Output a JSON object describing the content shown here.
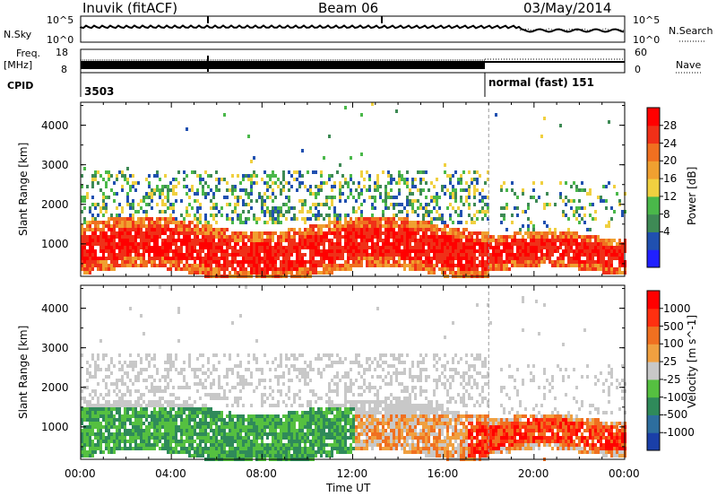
{
  "header": {
    "title": "Inuvik (fitACF)",
    "beam": "Beam 06",
    "date": "03/May/2014"
  },
  "top_panels": {
    "nsky_label": "N.Sky",
    "nsearch_label": "N.Search",
    "noise_ticks_left": [
      "10^5",
      "10^0"
    ],
    "noise_ticks_right": [
      "10^5",
      "10^0"
    ],
    "freq_label_1": "Freq.",
    "freq_label_2": "[MHz]",
    "freq_ticks": [
      "18",
      "8"
    ],
    "nave_label": "Nave",
    "nave_ticks": [
      "60",
      "0"
    ],
    "cpid_label": "CPID",
    "cpid_value": "3503",
    "mode_text": "normal (fast) 151"
  },
  "chart_data": [
    {
      "type": "heatmap",
      "quantity": "Power",
      "ylabel": "Slant Range [km]",
      "yticks": [
        "4000",
        "3000",
        "2000",
        "1000"
      ],
      "ylim": [
        180,
        4580
      ],
      "xlim": [
        0,
        24
      ],
      "colorbar": {
        "label": "Power [dB]",
        "ticks": [
          "28",
          "24",
          "20",
          "16",
          "12",
          "8",
          "4"
        ],
        "colors": [
          "#2020ff",
          "#2050b0",
          "#3e8a55",
          "#4ab84a",
          "#f0d040",
          "#f0a030",
          "#f07020",
          "#f03018",
          "#ff0000"
        ]
      },
      "vertical_marker_ut": 18.0
    },
    {
      "type": "heatmap",
      "quantity": "Velocity",
      "ylabel": "Slant Range [km]",
      "yticks": [
        "4000",
        "3000",
        "2000",
        "1000"
      ],
      "ylim": [
        180,
        4580
      ],
      "xlim": [
        0,
        24
      ],
      "xticks": [
        "00:00",
        "04:00",
        "08:00",
        "12:00",
        "16:00",
        "20:00",
        "00:00"
      ],
      "xlabel": "Time UT",
      "colorbar": {
        "label": "Velocity [m s^-1]",
        "ticks": [
          "1000",
          "500",
          "100",
          "25",
          "-25",
          "-100",
          "-500",
          "-1000"
        ],
        "colors": [
          "#1a3fa8",
          "#2d6e9e",
          "#2f8a5a",
          "#55c040",
          "#c8c8c8",
          "#f0a040",
          "#f07020",
          "#ff3010",
          "#ff0000"
        ]
      },
      "vertical_marker_ut": 18.0
    }
  ]
}
